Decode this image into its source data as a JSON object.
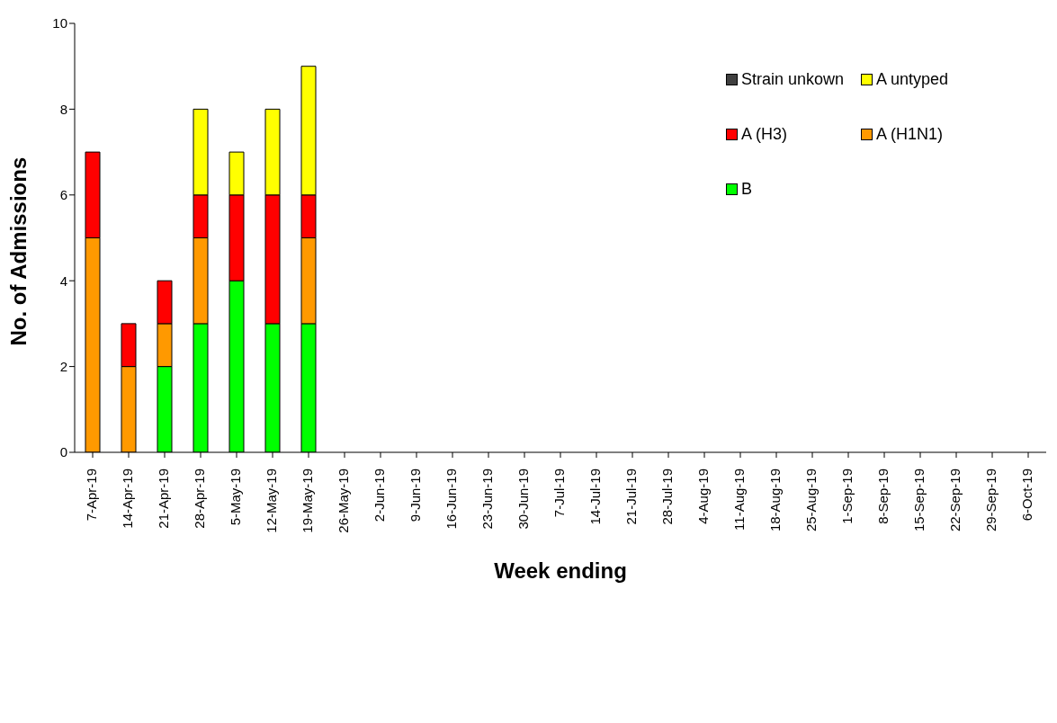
{
  "chart_data": {
    "type": "bar",
    "stacked": true,
    "xlabel": "Week ending",
    "ylabel": "No. of Admissions",
    "categories": [
      "7-Apr-19",
      "14-Apr-19",
      "21-Apr-19",
      "28-Apr-19",
      "5-May-19",
      "12-May-19",
      "19-May-19",
      "26-May-19",
      "2-Jun-19",
      "9-Jun-19",
      "16-Jun-19",
      "23-Jun-19",
      "30-Jun-19",
      "7-Jul-19",
      "14-Jul-19",
      "21-Jul-19",
      "28-Jul-19",
      "4-Aug-19",
      "11-Aug-19",
      "18-Aug-19",
      "25-Aug-19",
      "1-Sep-19",
      "8-Sep-19",
      "15-Sep-19",
      "22-Sep-19",
      "29-Sep-19",
      "6-Oct-19"
    ],
    "series": [
      {
        "name": "B",
        "color": "#00ff00",
        "values": [
          0,
          0,
          2,
          3,
          4,
          3,
          3,
          null,
          null,
          null,
          null,
          null,
          null,
          null,
          null,
          null,
          null,
          null,
          null,
          null,
          null,
          null,
          null,
          null,
          null,
          null,
          null
        ]
      },
      {
        "name": "A (H1N1)",
        "color": "#ff9900",
        "values": [
          5,
          2,
          1,
          2,
          0,
          0,
          2,
          null,
          null,
          null,
          null,
          null,
          null,
          null,
          null,
          null,
          null,
          null,
          null,
          null,
          null,
          null,
          null,
          null,
          null,
          null,
          null
        ]
      },
      {
        "name": "A (H3)",
        "color": "#ff0000",
        "values": [
          2,
          1,
          1,
          1,
          2,
          3,
          1,
          null,
          null,
          null,
          null,
          null,
          null,
          null,
          null,
          null,
          null,
          null,
          null,
          null,
          null,
          null,
          null,
          null,
          null,
          null,
          null
        ]
      },
      {
        "name": "A untyped",
        "color": "#ffff00",
        "values": [
          0,
          0,
          0,
          2,
          1,
          2,
          3,
          null,
          null,
          null,
          null,
          null,
          null,
          null,
          null,
          null,
          null,
          null,
          null,
          null,
          null,
          null,
          null,
          null,
          null,
          null,
          null
        ]
      },
      {
        "name": "Strain unkown",
        "color": "#404040",
        "values": [
          0,
          0,
          0,
          0,
          0,
          0,
          0,
          null,
          null,
          null,
          null,
          null,
          null,
          null,
          null,
          null,
          null,
          null,
          null,
          null,
          null,
          null,
          null,
          null,
          null,
          null,
          null
        ]
      }
    ],
    "ylim": [
      0,
      10
    ],
    "yticks": [
      0,
      2,
      4,
      6,
      8,
      10
    ],
    "grid": false,
    "legend": "top right"
  }
}
